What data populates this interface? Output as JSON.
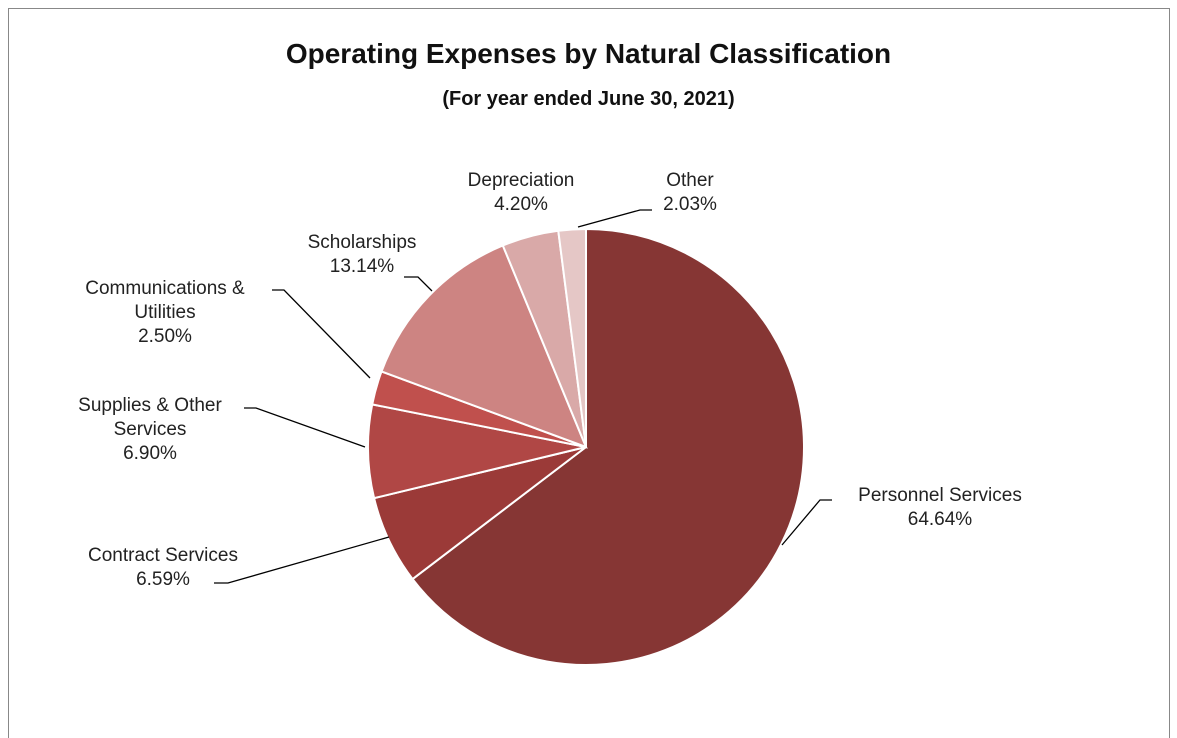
{
  "chart_data": {
    "type": "pie",
    "title": "Operating Expenses by Natural Classification",
    "subtitle": "(For year ended June 30, 2021)",
    "categories": [
      "Personnel Services",
      "Contract Services",
      "Supplies & Other Services",
      "Communications & Utilities",
      "Scholarships",
      "Depreciation",
      "Other"
    ],
    "values": [
      64.64,
      6.59,
      6.9,
      2.5,
      13.14,
      4.2,
      2.03
    ],
    "value_labels": [
      "64.64%",
      "6.59%",
      "6.90%",
      "2.50%",
      "13.14%",
      "4.20%",
      "2.03%"
    ],
    "colors": [
      "#863634",
      "#9b3a38",
      "#b04745",
      "#c0504d",
      "#cd8482",
      "#d9a9a8",
      "#e5c7c6"
    ]
  }
}
